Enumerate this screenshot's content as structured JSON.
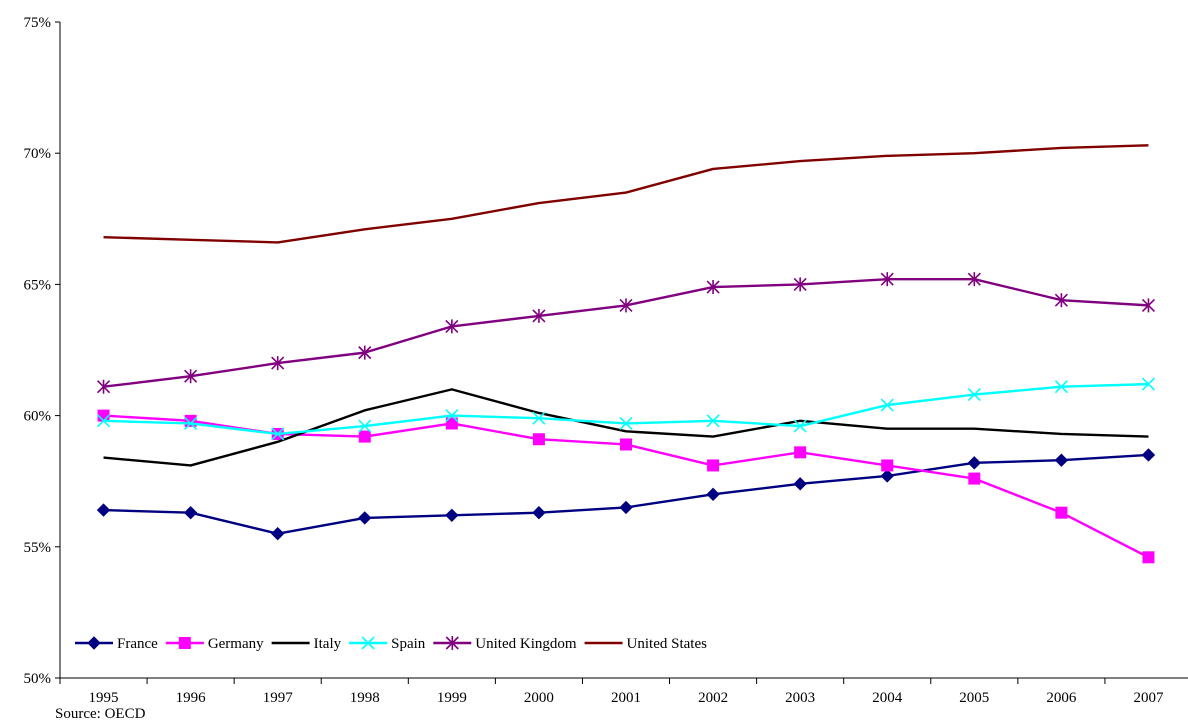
{
  "chart_data": {
    "type": "line",
    "x": [
      "1995",
      "1996",
      "1997",
      "1998",
      "1999",
      "2000",
      "2001",
      "2002",
      "2003",
      "2004",
      "2005",
      "2006",
      "2007"
    ],
    "ylim": [
      50,
      75
    ],
    "yticks": [
      "50%",
      "55%",
      "60%",
      "65%",
      "70%",
      "75%"
    ],
    "grid": false,
    "legend": "bottom-left, inside plot",
    "series": [
      {
        "name": "France",
        "color": "#000080",
        "marker": "diamond",
        "values": [
          56.4,
          56.3,
          55.5,
          56.1,
          56.2,
          56.3,
          56.5,
          57.0,
          57.4,
          57.7,
          58.2,
          58.3,
          58.5
        ]
      },
      {
        "name": "Germany",
        "color": "#FF00FF",
        "marker": "square",
        "values": [
          60.0,
          59.8,
          59.3,
          59.2,
          59.7,
          59.1,
          58.9,
          58.1,
          58.6,
          58.1,
          57.6,
          56.3,
          54.6
        ]
      },
      {
        "name": "Italy",
        "color": "#000000",
        "marker": "none",
        "values": [
          58.4,
          58.1,
          59.0,
          60.2,
          61.0,
          60.1,
          59.4,
          59.2,
          59.8,
          59.5,
          59.5,
          59.3,
          59.2
        ]
      },
      {
        "name": "Spain",
        "color": "#00FFFF",
        "marker": "x",
        "values": [
          59.8,
          59.7,
          59.3,
          59.6,
          60.0,
          59.9,
          59.7,
          59.8,
          59.6,
          60.4,
          60.8,
          61.1,
          61.2
        ]
      },
      {
        "name": "United Kingdom",
        "color": "#800080",
        "marker": "star",
        "values": [
          61.1,
          61.5,
          62.0,
          62.4,
          63.4,
          63.8,
          64.2,
          64.9,
          65.0,
          65.2,
          65.2,
          64.4,
          64.2
        ]
      },
      {
        "name": "United States",
        "color": "#800000",
        "marker": "none",
        "values": [
          66.8,
          66.7,
          66.6,
          67.1,
          67.5,
          68.1,
          68.5,
          69.4,
          69.7,
          69.9,
          70.0,
          70.2,
          70.3
        ]
      }
    ]
  },
  "source": "Source: OECD"
}
